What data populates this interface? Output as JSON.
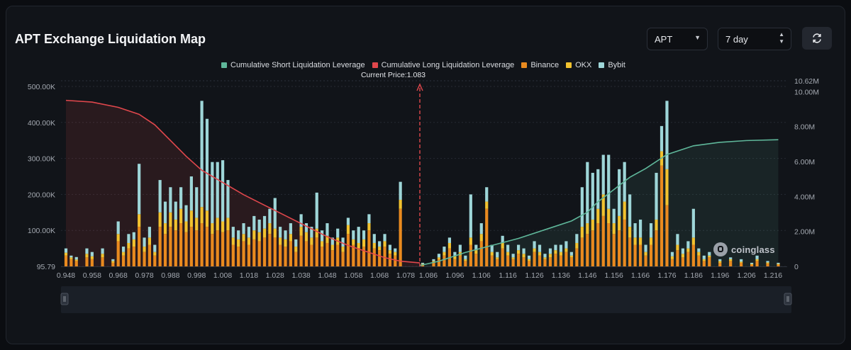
{
  "header": {
    "title": "APT Exchange Liquidation Map",
    "symbol_value": "APT",
    "range_value": "7 day",
    "refresh_icon": "refresh-icon"
  },
  "watermark": "coinglass",
  "colors": {
    "short_line": "#5fb79a",
    "long_line": "#e0474c",
    "binance": "#e98a1f",
    "okx": "#f2c22f",
    "bybit": "#9ed6d8",
    "background": "#111419"
  },
  "chart_data": {
    "type": "bar",
    "title": "",
    "legend": [
      "Cumulative Short Liquidation Leverage",
      "Cumulative Long Liquidation Leverage",
      "Binance",
      "OKX",
      "Bybit"
    ],
    "legend_position": "top-center",
    "current_price_label": "Current Price:1.083",
    "current_price": 1.083,
    "x_tick_labels": [
      "0.948",
      "0.958",
      "0.968",
      "0.978",
      "0.988",
      "0.998",
      "1.008",
      "1.018",
      "1.028",
      "1.038",
      "1.048",
      "1.058",
      "1.068",
      "1.078",
      "1.086",
      "1.096",
      "1.106",
      "1.116",
      "1.126",
      "1.136",
      "1.146",
      "1.156",
      "1.166",
      "1.176",
      "1.186",
      "1.196",
      "1.206",
      "1.216"
    ],
    "y_left_ticks": [
      "95.79",
      "100.00K",
      "200.00K",
      "300.00K",
      "400.00K",
      "500.00K"
    ],
    "y_right_ticks": [
      "0",
      "2.00M",
      "4.00M",
      "6.00M",
      "8.00M",
      "10.00M",
      "10.62M"
    ],
    "ylim_left": [
      0,
      500000
    ],
    "ylim_right": [
      0,
      10620000
    ],
    "grid": true,
    "bars_unit": "liquidation volume (USD)",
    "bars": [
      {
        "x": 0.948,
        "binance": 30000,
        "okx": 8000,
        "bybit": 12000
      },
      {
        "x": 0.95,
        "binance": 20000,
        "okx": 5000,
        "bybit": 5000
      },
      {
        "x": 0.952,
        "binance": 15000,
        "okx": 4000,
        "bybit": 7000
      },
      {
        "x": 0.956,
        "binance": 25000,
        "okx": 10000,
        "bybit": 15000
      },
      {
        "x": 0.958,
        "binance": 20000,
        "okx": 8000,
        "bybit": 12000
      },
      {
        "x": 0.962,
        "binance": 25000,
        "okx": 10000,
        "bybit": 15000
      },
      {
        "x": 0.966,
        "binance": 10000,
        "okx": 5000,
        "bybit": 5000
      },
      {
        "x": 0.968,
        "binance": 70000,
        "okx": 20000,
        "bybit": 35000
      },
      {
        "x": 0.97,
        "binance": 30000,
        "okx": 10000,
        "bybit": 15000
      },
      {
        "x": 0.972,
        "binance": 50000,
        "okx": 15000,
        "bybit": 25000
      },
      {
        "x": 0.974,
        "binance": 55000,
        "okx": 20000,
        "bybit": 20000
      },
      {
        "x": 0.976,
        "binance": 110000,
        "okx": 35000,
        "bybit": 140000
      },
      {
        "x": 0.978,
        "binance": 40000,
        "okx": 15000,
        "bybit": 25000
      },
      {
        "x": 0.98,
        "binance": 60000,
        "okx": 20000,
        "bybit": 30000
      },
      {
        "x": 0.982,
        "binance": 30000,
        "okx": 10000,
        "bybit": 20000
      },
      {
        "x": 0.984,
        "binance": 110000,
        "okx": 40000,
        "bybit": 90000
      },
      {
        "x": 0.986,
        "binance": 90000,
        "okx": 30000,
        "bybit": 60000
      },
      {
        "x": 0.988,
        "binance": 110000,
        "okx": 40000,
        "bybit": 70000
      },
      {
        "x": 0.99,
        "binance": 100000,
        "okx": 30000,
        "bybit": 50000
      },
      {
        "x": 0.992,
        "binance": 120000,
        "okx": 40000,
        "bybit": 60000
      },
      {
        "x": 0.994,
        "binance": 95000,
        "okx": 30000,
        "bybit": 45000
      },
      {
        "x": 0.996,
        "binance": 110000,
        "okx": 45000,
        "bybit": 95000
      },
      {
        "x": 0.998,
        "binance": 100000,
        "okx": 35000,
        "bybit": 85000
      },
      {
        "x": 1.0,
        "binance": 120000,
        "okx": 45000,
        "bybit": 295000
      },
      {
        "x": 1.002,
        "binance": 110000,
        "okx": 45000,
        "bybit": 255000
      },
      {
        "x": 1.004,
        "binance": 90000,
        "okx": 30000,
        "bybit": 170000
      },
      {
        "x": 1.006,
        "binance": 100000,
        "okx": 35000,
        "bybit": 155000
      },
      {
        "x": 1.008,
        "binance": 95000,
        "okx": 30000,
        "bybit": 170000
      },
      {
        "x": 1.01,
        "binance": 100000,
        "okx": 35000,
        "bybit": 105000
      },
      {
        "x": 1.012,
        "binance": 60000,
        "okx": 20000,
        "bybit": 30000
      },
      {
        "x": 1.014,
        "binance": 55000,
        "okx": 20000,
        "bybit": 25000
      },
      {
        "x": 1.016,
        "binance": 70000,
        "okx": 20000,
        "bybit": 30000
      },
      {
        "x": 1.018,
        "binance": 60000,
        "okx": 20000,
        "bybit": 30000
      },
      {
        "x": 1.02,
        "binance": 75000,
        "okx": 25000,
        "bybit": 40000
      },
      {
        "x": 1.022,
        "binance": 70000,
        "okx": 25000,
        "bybit": 35000
      },
      {
        "x": 1.024,
        "binance": 80000,
        "okx": 25000,
        "bybit": 35000
      },
      {
        "x": 1.026,
        "binance": 90000,
        "okx": 30000,
        "bybit": 40000
      },
      {
        "x": 1.028,
        "binance": 80000,
        "okx": 25000,
        "bybit": 85000
      },
      {
        "x": 1.03,
        "binance": 60000,
        "okx": 20000,
        "bybit": 30000
      },
      {
        "x": 1.032,
        "binance": 55000,
        "okx": 20000,
        "bybit": 25000
      },
      {
        "x": 1.034,
        "binance": 70000,
        "okx": 20000,
        "bybit": 30000
      },
      {
        "x": 1.036,
        "binance": 40000,
        "okx": 15000,
        "bybit": 20000
      },
      {
        "x": 1.038,
        "binance": 85000,
        "okx": 25000,
        "bybit": 35000
      },
      {
        "x": 1.04,
        "binance": 70000,
        "okx": 25000,
        "bybit": 25000
      },
      {
        "x": 1.042,
        "binance": 60000,
        "okx": 20000,
        "bybit": 30000
      },
      {
        "x": 1.044,
        "binance": 80000,
        "okx": 25000,
        "bybit": 100000
      },
      {
        "x": 1.046,
        "binance": 55000,
        "okx": 15000,
        "bybit": 30000
      },
      {
        "x": 1.048,
        "binance": 65000,
        "okx": 20000,
        "bybit": 35000
      },
      {
        "x": 1.05,
        "binance": 45000,
        "okx": 15000,
        "bybit": 20000
      },
      {
        "x": 1.052,
        "binance": 60000,
        "okx": 20000,
        "bybit": 25000
      },
      {
        "x": 1.054,
        "binance": 40000,
        "okx": 15000,
        "bybit": 25000
      },
      {
        "x": 1.056,
        "binance": 90000,
        "okx": 25000,
        "bybit": 20000
      },
      {
        "x": 1.058,
        "binance": 60000,
        "okx": 15000,
        "bybit": 25000
      },
      {
        "x": 1.06,
        "binance": 50000,
        "okx": 15000,
        "bybit": 45000
      },
      {
        "x": 1.062,
        "binance": 55000,
        "okx": 20000,
        "bybit": 25000
      },
      {
        "x": 1.064,
        "binance": 100000,
        "okx": 20000,
        "bybit": 25000
      },
      {
        "x": 1.066,
        "binance": 50000,
        "okx": 15000,
        "bybit": 25000
      },
      {
        "x": 1.068,
        "binance": 45000,
        "okx": 10000,
        "bybit": 15000
      },
      {
        "x": 1.07,
        "binance": 55000,
        "okx": 15000,
        "bybit": 20000
      },
      {
        "x": 1.072,
        "binance": 35000,
        "okx": 10000,
        "bybit": 15000
      },
      {
        "x": 1.074,
        "binance": 30000,
        "okx": 10000,
        "bybit": 10000
      },
      {
        "x": 1.076,
        "binance": 160000,
        "okx": 25000,
        "bybit": 50000
      },
      {
        "x": 1.084,
        "binance": 5000,
        "okx": 2000,
        "bybit": 3000
      },
      {
        "x": 1.088,
        "binance": 10000,
        "okx": 5000,
        "bybit": 5000
      },
      {
        "x": 1.09,
        "binance": 20000,
        "okx": 5000,
        "bybit": 10000
      },
      {
        "x": 1.092,
        "binance": 30000,
        "okx": 10000,
        "bybit": 15000
      },
      {
        "x": 1.094,
        "binance": 50000,
        "okx": 15000,
        "bybit": 15000
      },
      {
        "x": 1.096,
        "binance": 20000,
        "okx": 8000,
        "bybit": 12000
      },
      {
        "x": 1.098,
        "binance": 30000,
        "okx": 10000,
        "bybit": 20000
      },
      {
        "x": 1.1,
        "binance": 15000,
        "okx": 5000,
        "bybit": 10000
      },
      {
        "x": 1.102,
        "binance": 60000,
        "okx": 20000,
        "bybit": 120000
      },
      {
        "x": 1.104,
        "binance": 35000,
        "okx": 10000,
        "bybit": 15000
      },
      {
        "x": 1.106,
        "binance": 70000,
        "okx": 20000,
        "bybit": 30000
      },
      {
        "x": 1.108,
        "binance": 160000,
        "okx": 20000,
        "bybit": 40000
      },
      {
        "x": 1.11,
        "binance": 30000,
        "okx": 10000,
        "bybit": 20000
      },
      {
        "x": 1.112,
        "binance": 20000,
        "okx": 5000,
        "bybit": 15000
      },
      {
        "x": 1.114,
        "binance": 50000,
        "okx": 15000,
        "bybit": 20000
      },
      {
        "x": 1.116,
        "binance": 30000,
        "okx": 10000,
        "bybit": 20000
      },
      {
        "x": 1.118,
        "binance": 20000,
        "okx": 5000,
        "bybit": 10000
      },
      {
        "x": 1.12,
        "binance": 35000,
        "okx": 10000,
        "bybit": 15000
      },
      {
        "x": 1.122,
        "binance": 25000,
        "okx": 10000,
        "bybit": 15000
      },
      {
        "x": 1.124,
        "binance": 15000,
        "okx": 5000,
        "bybit": 10000
      },
      {
        "x": 1.126,
        "binance": 40000,
        "okx": 10000,
        "bybit": 20000
      },
      {
        "x": 1.128,
        "binance": 30000,
        "okx": 10000,
        "bybit": 20000
      },
      {
        "x": 1.13,
        "binance": 20000,
        "okx": 5000,
        "bybit": 10000
      },
      {
        "x": 1.132,
        "binance": 25000,
        "okx": 10000,
        "bybit": 15000
      },
      {
        "x": 1.134,
        "binance": 35000,
        "okx": 10000,
        "bybit": 15000
      },
      {
        "x": 1.136,
        "binance": 30000,
        "okx": 10000,
        "bybit": 20000
      },
      {
        "x": 1.138,
        "binance": 40000,
        "okx": 10000,
        "bybit": 20000
      },
      {
        "x": 1.14,
        "binance": 25000,
        "okx": 5000,
        "bybit": 10000
      },
      {
        "x": 1.142,
        "binance": 50000,
        "okx": 15000,
        "bybit": 25000
      },
      {
        "x": 1.144,
        "binance": 80000,
        "okx": 30000,
        "bybit": 110000
      },
      {
        "x": 1.146,
        "binance": 90000,
        "okx": 30000,
        "bybit": 170000
      },
      {
        "x": 1.148,
        "binance": 100000,
        "okx": 30000,
        "bybit": 130000
      },
      {
        "x": 1.15,
        "binance": 120000,
        "okx": 40000,
        "bybit": 110000
      },
      {
        "x": 1.152,
        "binance": 140000,
        "okx": 60000,
        "bybit": 110000
      },
      {
        "x": 1.154,
        "binance": 120000,
        "okx": 40000,
        "bybit": 150000
      },
      {
        "x": 1.156,
        "binance": 90000,
        "okx": 30000,
        "bybit": 40000
      },
      {
        "x": 1.158,
        "binance": 100000,
        "okx": 40000,
        "bybit": 130000
      },
      {
        "x": 1.16,
        "binance": 130000,
        "okx": 50000,
        "bybit": 110000
      },
      {
        "x": 1.162,
        "binance": 80000,
        "okx": 30000,
        "bybit": 90000
      },
      {
        "x": 1.164,
        "binance": 60000,
        "okx": 20000,
        "bybit": 40000
      },
      {
        "x": 1.166,
        "binance": 60000,
        "okx": 20000,
        "bybit": 50000
      },
      {
        "x": 1.168,
        "binance": 30000,
        "okx": 10000,
        "bybit": 20000
      },
      {
        "x": 1.17,
        "binance": 60000,
        "okx": 20000,
        "bybit": 40000
      },
      {
        "x": 1.172,
        "binance": 100000,
        "okx": 30000,
        "bybit": 130000
      },
      {
        "x": 1.174,
        "binance": 280000,
        "okx": 40000,
        "bybit": 70000
      },
      {
        "x": 1.176,
        "binance": 170000,
        "okx": 100000,
        "bybit": 190000
      },
      {
        "x": 1.178,
        "binance": 20000,
        "okx": 8000,
        "bybit": 12000
      },
      {
        "x": 1.18,
        "binance": 45000,
        "okx": 15000,
        "bybit": 30000
      },
      {
        "x": 1.182,
        "binance": 25000,
        "okx": 10000,
        "bybit": 15000
      },
      {
        "x": 1.184,
        "binance": 40000,
        "okx": 10000,
        "bybit": 20000
      },
      {
        "x": 1.186,
        "binance": 60000,
        "okx": 20000,
        "bybit": 80000
      },
      {
        "x": 1.188,
        "binance": 30000,
        "okx": 10000,
        "bybit": 10000
      },
      {
        "x": 1.19,
        "binance": 15000,
        "okx": 5000,
        "bybit": 10000
      },
      {
        "x": 1.192,
        "binance": 25000,
        "okx": 5000,
        "bybit": 10000
      },
      {
        "x": 1.196,
        "binance": 10000,
        "okx": 5000,
        "bybit": 5000
      },
      {
        "x": 1.2,
        "binance": 15000,
        "okx": 5000,
        "bybit": 5000
      },
      {
        "x": 1.204,
        "binance": 10000,
        "okx": 3000,
        "bybit": 7000
      },
      {
        "x": 1.208,
        "binance": 5000,
        "okx": 2000,
        "bybit": 3000
      },
      {
        "x": 1.21,
        "binance": 15000,
        "okx": 5000,
        "bybit": 10000
      },
      {
        "x": 1.214,
        "binance": 8000,
        "okx": 3000,
        "bybit": 4000
      },
      {
        "x": 1.218,
        "binance": 5000,
        "okx": 2000,
        "bybit": 3000
      }
    ],
    "series": [
      {
        "name": "Cumulative Long Liquidation Leverage",
        "x": [
          0.948,
          0.958,
          0.968,
          0.976,
          0.982,
          0.988,
          0.994,
          1.0,
          1.008,
          1.016,
          1.024,
          1.032,
          1.04,
          1.048,
          1.056,
          1.064,
          1.07,
          1.076,
          1.083
        ],
        "values": [
          9.5,
          9.4,
          9.1,
          8.7,
          8.1,
          7.2,
          6.3,
          5.5,
          4.8,
          4.1,
          3.5,
          2.9,
          2.3,
          1.7,
          1.2,
          0.8,
          0.5,
          0.3,
          0.2
        ]
      },
      {
        "name": "Cumulative Short Liquidation Leverage",
        "x": [
          1.083,
          1.09,
          1.1,
          1.11,
          1.12,
          1.13,
          1.14,
          1.146,
          1.15,
          1.156,
          1.162,
          1.168,
          1.172,
          1.176,
          1.186,
          1.196,
          1.206,
          1.218
        ],
        "values": [
          0.05,
          0.3,
          0.8,
          1.2,
          1.6,
          2.1,
          2.6,
          3.1,
          3.7,
          4.4,
          5.1,
          5.6,
          6.0,
          6.4,
          6.9,
          7.1,
          7.2,
          7.25
        ]
      }
    ],
    "series_unit": "M"
  }
}
